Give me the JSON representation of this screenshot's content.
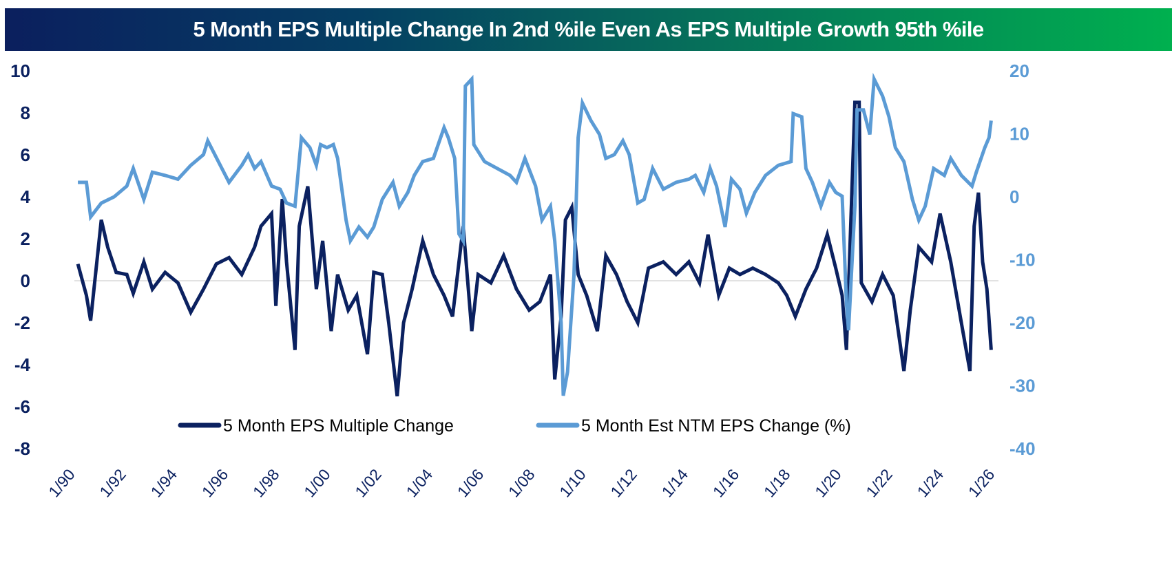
{
  "chart_data": {
    "type": "line",
    "title": "5 Month EPS Multiple Change In 2nd %ile Even As EPS Multiple Growth 95th %ile",
    "colors": {
      "multiple": "#0b2160",
      "eps": "#5b9bd5",
      "title_start": "#0b1f5e",
      "title_end": "#00b04f"
    },
    "left_axis": {
      "ylim": [
        -8,
        10
      ],
      "ticks": [
        "10",
        "8",
        "6",
        "4",
        "2",
        "0",
        "-2",
        "-4",
        "-6",
        "-8"
      ]
    },
    "right_axis": {
      "ylim": [
        -40,
        20
      ],
      "ticks": [
        "20",
        "10",
        "0",
        "-10",
        "-20",
        "-30",
        "-40"
      ]
    },
    "x_axis": {
      "ticks": [
        "1/90",
        "1/92",
        "1/94",
        "1/96",
        "1/98",
        "1/00",
        "1/02",
        "1/04",
        "1/06",
        "1/08",
        "1/10",
        "1/12",
        "1/14",
        "1/16",
        "1/18",
        "1/20",
        "1/22",
        "1/24",
        "1/26"
      ]
    },
    "grid": false,
    "zero_line": true,
    "legend_position": "bottom-center",
    "series": [
      {
        "name": "5 Month EPS Multiple Change",
        "axis": "left",
        "points": [
          [
            "1990-02",
            0.8
          ],
          [
            "1990-06",
            -0.7
          ],
          [
            "1990-08",
            -1.9
          ],
          [
            "1991-01",
            2.9
          ],
          [
            "1991-04",
            1.6
          ],
          [
            "1991-08",
            0.4
          ],
          [
            "1992-01",
            0.3
          ],
          [
            "1992-04",
            -0.6
          ],
          [
            "1992-09",
            0.9
          ],
          [
            "1993-01",
            -0.4
          ],
          [
            "1993-07",
            0.4
          ],
          [
            "1994-01",
            -0.1
          ],
          [
            "1994-07",
            -1.5
          ],
          [
            "1995-01",
            -0.4
          ],
          [
            "1995-07",
            0.8
          ],
          [
            "1996-01",
            1.1
          ],
          [
            "1996-07",
            0.3
          ],
          [
            "1997-01",
            1.6
          ],
          [
            "1997-04",
            2.6
          ],
          [
            "1997-09",
            3.2
          ],
          [
            "1997-11",
            -1.2
          ],
          [
            "1998-02",
            3.9
          ],
          [
            "1998-04",
            0.9
          ],
          [
            "1998-08",
            -3.3
          ],
          [
            "1998-10",
            2.6
          ],
          [
            "1999-02",
            4.5
          ],
          [
            "1999-06",
            -0.4
          ],
          [
            "1999-09",
            1.9
          ],
          [
            "2000-01",
            -2.4
          ],
          [
            "2000-04",
            0.3
          ],
          [
            "2000-09",
            -1.4
          ],
          [
            "2001-01",
            -0.7
          ],
          [
            "2001-06",
            -3.5
          ],
          [
            "2001-09",
            0.4
          ],
          [
            "2002-01",
            0.3
          ],
          [
            "2002-04",
            -2.0
          ],
          [
            "2002-08",
            -5.5
          ],
          [
            "2002-11",
            -2.0
          ],
          [
            "2003-03",
            -0.4
          ],
          [
            "2003-08",
            1.9
          ],
          [
            "2004-01",
            0.3
          ],
          [
            "2004-06",
            -0.7
          ],
          [
            "2004-10",
            -1.7
          ],
          [
            "2005-03",
            2.6
          ],
          [
            "2005-07",
            -2.4
          ],
          [
            "2005-10",
            0.3
          ],
          [
            "2006-04",
            -0.1
          ],
          [
            "2006-10",
            1.2
          ],
          [
            "2007-04",
            -0.4
          ],
          [
            "2007-10",
            -1.4
          ],
          [
            "2008-03",
            -1.0
          ],
          [
            "2008-08",
            0.3
          ],
          [
            "2008-10",
            -4.7
          ],
          [
            "2009-01",
            -1.7
          ],
          [
            "2009-03",
            2.9
          ],
          [
            "2009-06",
            3.5
          ],
          [
            "2009-09",
            0.3
          ],
          [
            "2010-01",
            -0.7
          ],
          [
            "2010-06",
            -2.4
          ],
          [
            "2010-10",
            1.2
          ],
          [
            "2011-03",
            0.3
          ],
          [
            "2011-08",
            -1.0
          ],
          [
            "2012-01",
            -2.0
          ],
          [
            "2012-06",
            0.6
          ],
          [
            "2013-01",
            0.9
          ],
          [
            "2013-07",
            0.3
          ],
          [
            "2014-01",
            0.9
          ],
          [
            "2014-06",
            -0.1
          ],
          [
            "2014-10",
            2.2
          ],
          [
            "2015-03",
            -0.7
          ],
          [
            "2015-08",
            0.6
          ],
          [
            "2016-01",
            0.3
          ],
          [
            "2016-07",
            0.6
          ],
          [
            "2017-01",
            0.3
          ],
          [
            "2017-07",
            -0.1
          ],
          [
            "2017-11",
            -0.7
          ],
          [
            "2018-03",
            -1.7
          ],
          [
            "2018-08",
            -0.4
          ],
          [
            "2019-01",
            0.6
          ],
          [
            "2019-06",
            2.2
          ],
          [
            "2019-10",
            0.6
          ],
          [
            "2020-01",
            -0.7
          ],
          [
            "2020-03",
            -3.3
          ],
          [
            "2020-05",
            2.6
          ],
          [
            "2020-07",
            8.5
          ],
          [
            "2020-09",
            8.5
          ],
          [
            "2020-10",
            -0.1
          ],
          [
            "2021-03",
            -1.0
          ],
          [
            "2021-08",
            0.3
          ],
          [
            "2022-01",
            -0.7
          ],
          [
            "2022-06",
            -4.3
          ],
          [
            "2022-09",
            -1.4
          ],
          [
            "2023-01",
            1.6
          ],
          [
            "2023-07",
            0.9
          ],
          [
            "2023-11",
            3.2
          ],
          [
            "2024-04",
            0.9
          ],
          [
            "2024-09",
            -2.0
          ],
          [
            "2025-01",
            -4.3
          ],
          [
            "2025-03",
            2.6
          ],
          [
            "2025-05",
            4.2
          ],
          [
            "2025-07",
            0.9
          ],
          [
            "2025-09",
            -0.4
          ],
          [
            "2025-11",
            -3.3
          ]
        ]
      },
      {
        "name": "5 Month Est NTM EPS Change (%)",
        "axis": "right",
        "points": [
          [
            "1990-02",
            2.3
          ],
          [
            "1990-06",
            2.3
          ],
          [
            "1990-08",
            -3.2
          ],
          [
            "1991-01",
            -1.0
          ],
          [
            "1991-07",
            0.0
          ],
          [
            "1992-01",
            1.7
          ],
          [
            "1992-04",
            4.5
          ],
          [
            "1992-09",
            -0.4
          ],
          [
            "1993-01",
            3.9
          ],
          [
            "1993-07",
            3.4
          ],
          [
            "1994-01",
            2.8
          ],
          [
            "1994-07",
            5.0
          ],
          [
            "1995-01",
            6.7
          ],
          [
            "1995-03",
            8.9
          ],
          [
            "1995-08",
            5.6
          ],
          [
            "1996-01",
            2.3
          ],
          [
            "1996-07",
            5.0
          ],
          [
            "1996-10",
            6.7
          ],
          [
            "1997-01",
            4.5
          ],
          [
            "1997-04",
            5.6
          ],
          [
            "1997-09",
            1.7
          ],
          [
            "1998-01",
            1.2
          ],
          [
            "1998-04",
            -1.0
          ],
          [
            "1998-08",
            -1.5
          ],
          [
            "1998-11",
            9.4
          ],
          [
            "1999-03",
            7.8
          ],
          [
            "1999-06",
            5.0
          ],
          [
            "1999-08",
            8.3
          ],
          [
            "1999-11",
            7.8
          ],
          [
            "2000-02",
            8.3
          ],
          [
            "2000-04",
            6.1
          ],
          [
            "2000-08",
            -3.7
          ],
          [
            "2000-10",
            -7.0
          ],
          [
            "2001-02",
            -4.8
          ],
          [
            "2001-06",
            -6.4
          ],
          [
            "2001-09",
            -4.8
          ],
          [
            "2002-01",
            -0.4
          ],
          [
            "2002-06",
            2.3
          ],
          [
            "2002-09",
            -1.5
          ],
          [
            "2003-01",
            0.7
          ],
          [
            "2003-04",
            3.4
          ],
          [
            "2003-08",
            5.6
          ],
          [
            "2004-01",
            6.1
          ],
          [
            "2004-06",
            11.0
          ],
          [
            "2004-08",
            9.4
          ],
          [
            "2004-11",
            6.1
          ],
          [
            "2005-01",
            -5.9
          ],
          [
            "2005-03",
            -7.0
          ],
          [
            "2005-04",
            17.6
          ],
          [
            "2005-07",
            18.7
          ],
          [
            "2005-08",
            8.3
          ],
          [
            "2006-01",
            5.6
          ],
          [
            "2006-07",
            4.5
          ],
          [
            "2007-01",
            3.4
          ],
          [
            "2007-04",
            2.3
          ],
          [
            "2007-08",
            6.1
          ],
          [
            "2008-01",
            1.7
          ],
          [
            "2008-04",
            -3.7
          ],
          [
            "2008-08",
            -1.5
          ],
          [
            "2008-10",
            -7.0
          ],
          [
            "2009-01",
            -20.0
          ],
          [
            "2009-02",
            -31.6
          ],
          [
            "2009-04",
            -27.8
          ],
          [
            "2009-07",
            -12.5
          ],
          [
            "2009-09",
            9.4
          ],
          [
            "2009-11",
            14.9
          ],
          [
            "2010-03",
            12.1
          ],
          [
            "2010-07",
            9.9
          ],
          [
            "2010-10",
            6.1
          ],
          [
            "2011-02",
            6.7
          ],
          [
            "2011-06",
            8.9
          ],
          [
            "2011-09",
            6.7
          ],
          [
            "2012-01",
            -1.0
          ],
          [
            "2012-04",
            -0.4
          ],
          [
            "2012-08",
            4.5
          ],
          [
            "2013-01",
            1.2
          ],
          [
            "2013-07",
            2.3
          ],
          [
            "2014-01",
            2.8
          ],
          [
            "2014-04",
            3.4
          ],
          [
            "2014-08",
            0.7
          ],
          [
            "2014-11",
            4.5
          ],
          [
            "2015-02",
            1.7
          ],
          [
            "2015-06",
            -4.8
          ],
          [
            "2015-09",
            2.8
          ],
          [
            "2016-01",
            1.2
          ],
          [
            "2016-04",
            -2.6
          ],
          [
            "2016-08",
            0.7
          ],
          [
            "2017-01",
            3.4
          ],
          [
            "2017-07",
            5.0
          ],
          [
            "2018-01",
            5.6
          ],
          [
            "2018-02",
            13.2
          ],
          [
            "2018-06",
            12.7
          ],
          [
            "2018-08",
            4.5
          ],
          [
            "2018-11",
            2.3
          ],
          [
            "2019-03",
            -1.5
          ],
          [
            "2019-07",
            2.3
          ],
          [
            "2019-10",
            0.7
          ],
          [
            "2020-01",
            0.1
          ],
          [
            "2020-03",
            -16.8
          ],
          [
            "2020-04",
            -21.2
          ],
          [
            "2020-07",
            -1.5
          ],
          [
            "2020-08",
            13.8
          ],
          [
            "2020-11",
            13.8
          ],
          [
            "2021-02",
            9.9
          ],
          [
            "2021-04",
            18.7
          ],
          [
            "2021-08",
            16.0
          ],
          [
            "2021-11",
            12.7
          ],
          [
            "2022-02",
            7.8
          ],
          [
            "2022-06",
            5.6
          ],
          [
            "2022-10",
            -0.4
          ],
          [
            "2023-01",
            -3.7
          ],
          [
            "2023-04",
            -1.5
          ],
          [
            "2023-08",
            4.5
          ],
          [
            "2024-01",
            3.4
          ],
          [
            "2024-04",
            6.1
          ],
          [
            "2024-09",
            3.4
          ],
          [
            "2025-02",
            1.7
          ],
          [
            "2025-04",
            3.9
          ],
          [
            "2025-08",
            7.8
          ],
          [
            "2025-10",
            9.4
          ],
          [
            "2025-11",
            12.1
          ]
        ]
      }
    ]
  }
}
